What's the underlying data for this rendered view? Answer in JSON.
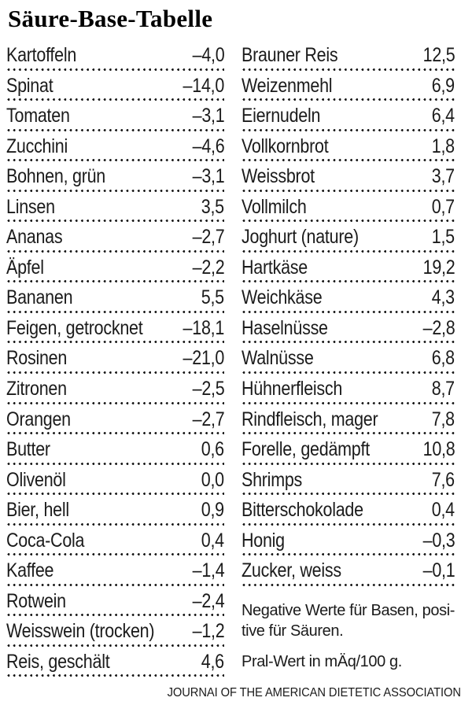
{
  "title": "Säure-Base-Tabelle",
  "colors": {
    "ink": "#1b1b1b",
    "background": "#ffffff"
  },
  "table": {
    "columns": {
      "left": [
        {
          "food": "Kartoffeln",
          "value": "–4,0"
        },
        {
          "food": "Spinat",
          "value": "–14,0"
        },
        {
          "food": "Tomaten",
          "value": "–3,1"
        },
        {
          "food": "Zucchini",
          "value": "–4,6"
        },
        {
          "food": "Bohnen, grün",
          "value": "–3,1"
        },
        {
          "food": "Linsen",
          "value": "3,5"
        },
        {
          "food": "Ananas",
          "value": "–2,7"
        },
        {
          "food": "Äpfel",
          "value": "–2,2"
        },
        {
          "food": "Bananen",
          "value": "5,5"
        },
        {
          "food": "Feigen, getrocknet",
          "value": "–18,1"
        },
        {
          "food": "Rosinen",
          "value": "–21,0"
        },
        {
          "food": "Zitronen",
          "value": "–2,5"
        },
        {
          "food": "Orangen",
          "value": "–2,7"
        },
        {
          "food": "Butter",
          "value": "0,6"
        },
        {
          "food": "Olivenöl",
          "value": "0,0"
        },
        {
          "food": "Bier, hell",
          "value": "0,9"
        },
        {
          "food": "Coca-Cola",
          "value": "0,4"
        },
        {
          "food": "Kaffee",
          "value": "–1,4"
        },
        {
          "food": "Rotwein",
          "value": "–2,4"
        },
        {
          "food": "Weisswein (trocken)",
          "value": "–1,2"
        },
        {
          "food": "Reis, geschält",
          "value": "4,6"
        }
      ],
      "right": [
        {
          "food": "Brauner Reis",
          "value": "12,5"
        },
        {
          "food": "Weizenmehl",
          "value": "6,9"
        },
        {
          "food": "Eiernudeln",
          "value": "6,4"
        },
        {
          "food": "Vollkornbrot",
          "value": "1,8"
        },
        {
          "food": "Weissbrot",
          "value": "3,7"
        },
        {
          "food": "Vollmilch",
          "value": "0,7"
        },
        {
          "food": "Joghurt (nature)",
          "value": "1,5"
        },
        {
          "food": "Hartkäse",
          "value": "19,2"
        },
        {
          "food": "Weichkäse",
          "value": "4,3"
        },
        {
          "food": "Haselnüsse",
          "value": "–2,8"
        },
        {
          "food": "Walnüsse",
          "value": "6,8"
        },
        {
          "food": "Hühnerfleisch",
          "value": "8,7"
        },
        {
          "food": "Rindfleisch, mager",
          "value": "7,8"
        },
        {
          "food": "Forelle, gedämpft",
          "value": "10,8"
        },
        {
          "food": "Shrimps",
          "value": "7,6"
        },
        {
          "food": "Bitterschokolade",
          "value": "0,4"
        },
        {
          "food": "Honig",
          "value": "–0,3"
        },
        {
          "food": "Zucker, weiss",
          "value": "–0,1"
        }
      ]
    }
  },
  "notes": {
    "line1": "Negative Werte für Basen, posi-",
    "line2": "tive für Säuren.",
    "unit": "Pral-Wert in mÄq/100 g."
  },
  "footer": {
    "source": "JOURNAI OF THE AMERICAN DIETETIC ASSOCIATION"
  }
}
